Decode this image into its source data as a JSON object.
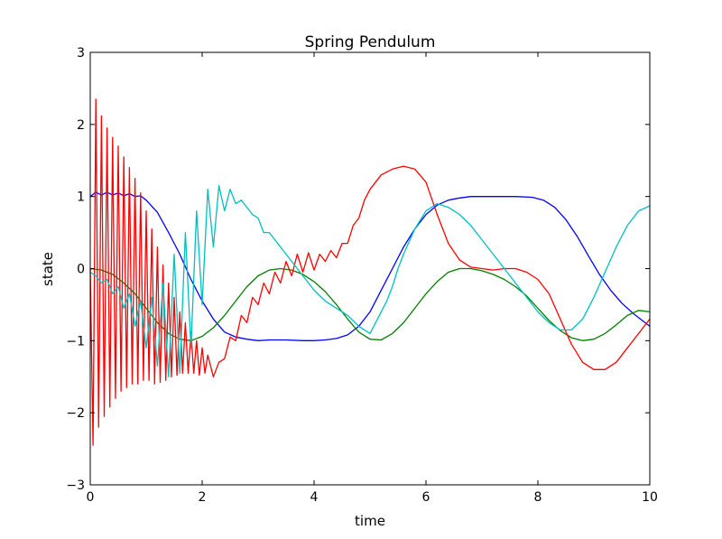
{
  "chart_data": {
    "type": "line",
    "title": "Spring Pendulum",
    "xlabel": "time",
    "ylabel": "state",
    "xlim": [
      0,
      10
    ],
    "ylim": [
      -3,
      3
    ],
    "grid": false,
    "x_ticks": [
      0,
      2,
      4,
      6,
      8,
      10
    ],
    "y_ticks": [
      -3,
      -2,
      -1,
      0,
      1,
      2,
      3
    ],
    "x_tick_labels": [
      "0",
      "2",
      "4",
      "6",
      "8",
      "10"
    ],
    "y_tick_labels": [
      "−3",
      "−2",
      "−1",
      "0",
      "1",
      "2",
      "3"
    ],
    "series": [
      {
        "name": "blue",
        "color": "#0000ff",
        "x": [
          0,
          0.1,
          0.2,
          0.3,
          0.4,
          0.5,
          0.6,
          0.7,
          0.8,
          0.9,
          1.0,
          1.2,
          1.4,
          1.6,
          1.8,
          2.0,
          2.2,
          2.4,
          2.6,
          2.8,
          3.0,
          3.2,
          3.5,
          3.8,
          4.0,
          4.2,
          4.4,
          4.6,
          4.8,
          5.0,
          5.2,
          5.4,
          5.6,
          5.8,
          6.0,
          6.2,
          6.4,
          6.6,
          6.8,
          7.0,
          7.3,
          7.6,
          7.9,
          8.1,
          8.3,
          8.5,
          8.7,
          8.9,
          9.1,
          9.3,
          9.5,
          9.7,
          9.9,
          10.0
        ],
        "y": [
          1.0,
          1.06,
          1.02,
          1.06,
          1.02,
          1.05,
          1.01,
          1.04,
          1.0,
          1.01,
          0.95,
          0.78,
          0.5,
          0.2,
          -0.15,
          -0.45,
          -0.7,
          -0.88,
          -0.95,
          -0.98,
          -1.0,
          -0.99,
          -0.99,
          -1.0,
          -1.0,
          -0.99,
          -0.97,
          -0.92,
          -0.8,
          -0.6,
          -0.3,
          0.0,
          0.3,
          0.55,
          0.75,
          0.88,
          0.95,
          0.98,
          1.0,
          1.0,
          1.0,
          1.0,
          0.99,
          0.95,
          0.85,
          0.68,
          0.45,
          0.18,
          -0.08,
          -0.3,
          -0.48,
          -0.62,
          -0.74,
          -0.8
        ]
      },
      {
        "name": "green",
        "color": "#008000",
        "x": [
          0,
          0.2,
          0.4,
          0.6,
          0.8,
          1.0,
          1.2,
          1.4,
          1.6,
          1.8,
          2.0,
          2.2,
          2.4,
          2.6,
          2.8,
          3.0,
          3.2,
          3.4,
          3.6,
          3.8,
          4.0,
          4.2,
          4.4,
          4.6,
          4.8,
          5.0,
          5.2,
          5.4,
          5.6,
          5.8,
          6.0,
          6.2,
          6.4,
          6.6,
          6.8,
          7.0,
          7.2,
          7.4,
          7.6,
          7.8,
          8.0,
          8.2,
          8.4,
          8.6,
          8.8,
          9.0,
          9.2,
          9.4,
          9.6,
          9.8,
          10.0
        ],
        "y": [
          0.0,
          -0.02,
          -0.08,
          -0.2,
          -0.35,
          -0.55,
          -0.75,
          -0.9,
          -0.98,
          -1.0,
          -0.94,
          -0.82,
          -0.65,
          -0.45,
          -0.25,
          -0.1,
          -0.02,
          0.0,
          -0.02,
          -0.08,
          -0.18,
          -0.32,
          -0.5,
          -0.7,
          -0.88,
          -0.98,
          -0.99,
          -0.9,
          -0.75,
          -0.55,
          -0.35,
          -0.18,
          -0.05,
          0.0,
          0.0,
          -0.03,
          -0.08,
          -0.15,
          -0.25,
          -0.38,
          -0.55,
          -0.72,
          -0.86,
          -0.96,
          -1.0,
          -0.98,
          -0.9,
          -0.78,
          -0.65,
          -0.58,
          -0.6
        ]
      },
      {
        "name": "red",
        "color": "#ff0000",
        "x": [
          0,
          0.05,
          0.1,
          0.15,
          0.2,
          0.25,
          0.3,
          0.35,
          0.4,
          0.45,
          0.5,
          0.55,
          0.6,
          0.65,
          0.7,
          0.75,
          0.8,
          0.85,
          0.9,
          0.95,
          1.0,
          1.05,
          1.1,
          1.15,
          1.2,
          1.25,
          1.3,
          1.35,
          1.4,
          1.45,
          1.5,
          1.55,
          1.6,
          1.65,
          1.7,
          1.75,
          1.8,
          1.85,
          1.9,
          1.95,
          2.0,
          2.05,
          2.1,
          2.2,
          2.3,
          2.4,
          2.5,
          2.6,
          2.7,
          2.8,
          2.9,
          3.0,
          3.1,
          3.2,
          3.3,
          3.4,
          3.5,
          3.6,
          3.7,
          3.8,
          3.9,
          4.0,
          4.1,
          4.2,
          4.3,
          4.4,
          4.5,
          4.6,
          4.7,
          4.8,
          4.9,
          5.0,
          5.2,
          5.4,
          5.6,
          5.8,
          6.0,
          6.2,
          6.4,
          6.6,
          6.8,
          7.0,
          7.2,
          7.4,
          7.6,
          7.8,
          8.0,
          8.2,
          8.4,
          8.6,
          8.8,
          9.0,
          9.2,
          9.4,
          9.6,
          9.8,
          10.0
        ],
        "y": [
          0.0,
          -2.45,
          2.35,
          -2.2,
          2.12,
          -2.05,
          1.95,
          -1.92,
          1.82,
          -1.8,
          1.7,
          -1.7,
          1.55,
          -1.65,
          1.4,
          -1.6,
          1.25,
          -1.6,
          1.05,
          -1.55,
          0.8,
          -1.55,
          0.55,
          -1.6,
          0.3,
          -1.58,
          0.05,
          -1.55,
          -0.2,
          -1.5,
          -0.4,
          -1.48,
          -0.6,
          -1.45,
          -0.75,
          -1.45,
          -0.88,
          -1.45,
          -1.0,
          -1.48,
          -1.1,
          -1.45,
          -1.2,
          -1.5,
          -1.3,
          -1.25,
          -0.95,
          -1.0,
          -0.65,
          -0.75,
          -0.4,
          -0.5,
          -0.2,
          -0.35,
          -0.05,
          -0.2,
          0.1,
          -0.1,
          0.2,
          -0.05,
          0.22,
          -0.02,
          0.2,
          0.1,
          0.25,
          0.15,
          0.35,
          0.35,
          0.6,
          0.7,
          0.95,
          1.1,
          1.3,
          1.38,
          1.42,
          1.38,
          1.2,
          0.75,
          0.35,
          0.12,
          0.02,
          0.0,
          -0.02,
          0.0,
          0.0,
          -0.05,
          -0.15,
          -0.35,
          -0.7,
          -1.05,
          -1.3,
          -1.4,
          -1.4,
          -1.3,
          -1.1,
          -0.9,
          -0.7
        ]
      },
      {
        "name": "cyan",
        "color": "#00bfbf",
        "x": [
          0,
          0.1,
          0.2,
          0.3,
          0.4,
          0.5,
          0.6,
          0.7,
          0.8,
          0.9,
          1.0,
          1.1,
          1.2,
          1.3,
          1.4,
          1.5,
          1.6,
          1.7,
          1.8,
          1.9,
          2.0,
          2.1,
          2.2,
          2.3,
          2.4,
          2.5,
          2.6,
          2.7,
          2.8,
          2.9,
          3.0,
          3.1,
          3.2,
          3.4,
          3.6,
          3.8,
          4.0,
          4.2,
          4.4,
          4.6,
          4.8,
          4.9,
          5.0,
          5.1,
          5.2,
          5.3,
          5.4,
          5.5,
          5.6,
          5.8,
          6.0,
          6.2,
          6.4,
          6.6,
          6.8,
          7.0,
          7.2,
          7.4,
          7.6,
          7.8,
          8.0,
          8.2,
          8.4,
          8.6,
          8.8,
          9.0,
          9.2,
          9.4,
          9.6,
          9.8,
          10.0
        ],
        "y": [
          -0.05,
          -0.1,
          -0.2,
          -0.15,
          -0.35,
          -0.25,
          -0.55,
          -0.35,
          -0.8,
          -0.45,
          -1.1,
          -0.4,
          -1.35,
          -0.2,
          -1.5,
          0.2,
          -1.45,
          0.5,
          -1.1,
          0.8,
          -0.5,
          1.1,
          0.3,
          1.15,
          0.8,
          1.1,
          0.9,
          0.95,
          0.85,
          0.75,
          0.7,
          0.5,
          0.5,
          0.3,
          0.1,
          -0.1,
          -0.3,
          -0.45,
          -0.55,
          -0.65,
          -0.8,
          -0.85,
          -0.9,
          -0.75,
          -0.6,
          -0.45,
          -0.25,
          0.0,
          0.2,
          0.55,
          0.8,
          0.9,
          0.85,
          0.75,
          0.6,
          0.4,
          0.2,
          0.0,
          -0.2,
          -0.4,
          -0.6,
          -0.75,
          -0.85,
          -0.85,
          -0.7,
          -0.4,
          -0.05,
          0.3,
          0.6,
          0.8,
          0.87
        ]
      }
    ]
  }
}
